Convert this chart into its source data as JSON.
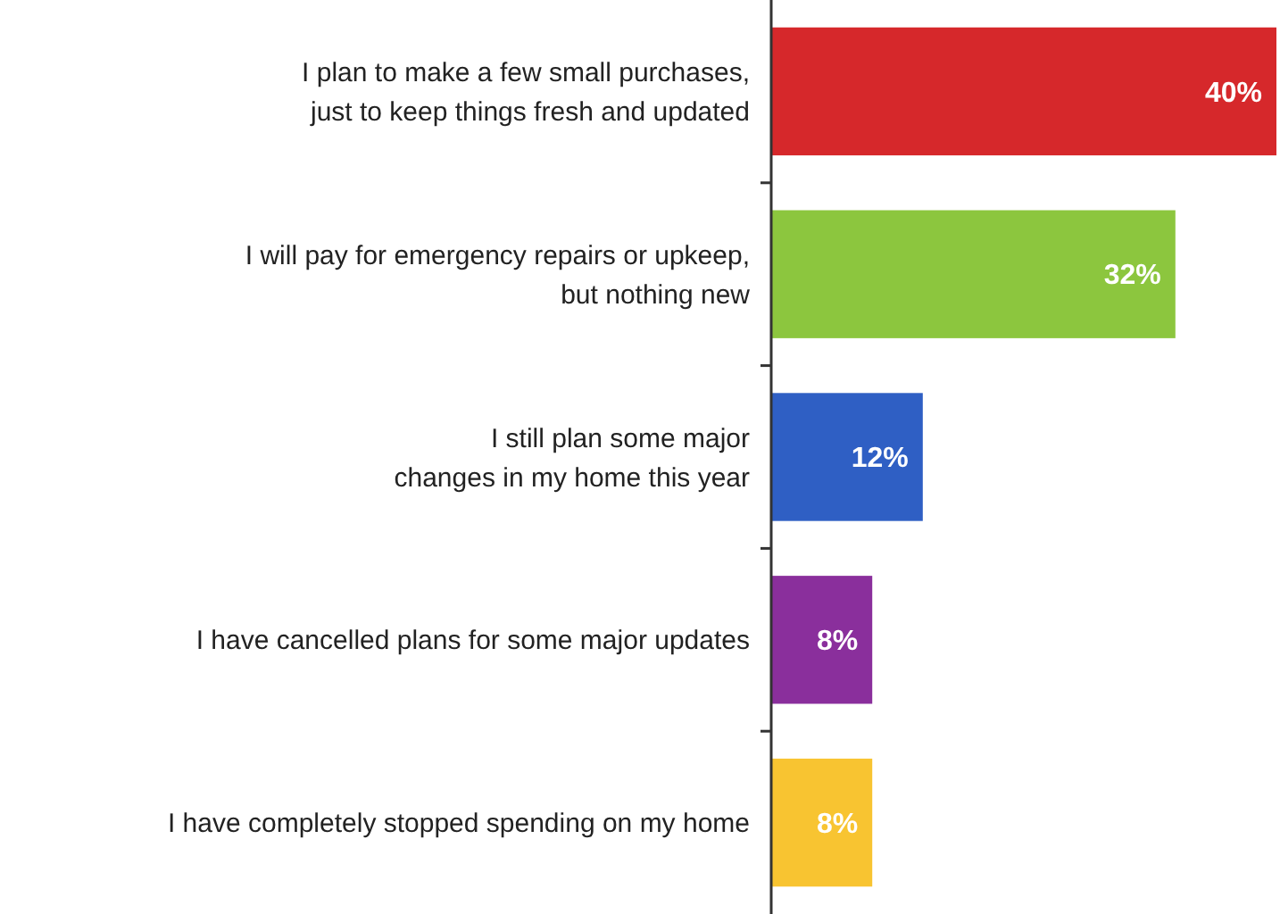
{
  "chart_data": {
    "type": "bar",
    "orientation": "horizontal",
    "categories": [
      "I plan to make a few small purchases,\njust to keep things fresh and updated",
      "I will pay for emergency repairs or upkeep,\nbut nothing new",
      "I still plan some major\nchanges in my home this year",
      "I have cancelled plans for some major updates",
      "I have completely stopped spending on my home"
    ],
    "values": [
      40,
      32,
      12,
      8,
      8
    ],
    "colors": [
      "#d6282b",
      "#8cc63e",
      "#2f5fc4",
      "#8a2f9c",
      "#f8c431"
    ],
    "value_labels": [
      "40%",
      "32%",
      "12%",
      "8%",
      "8%"
    ]
  }
}
